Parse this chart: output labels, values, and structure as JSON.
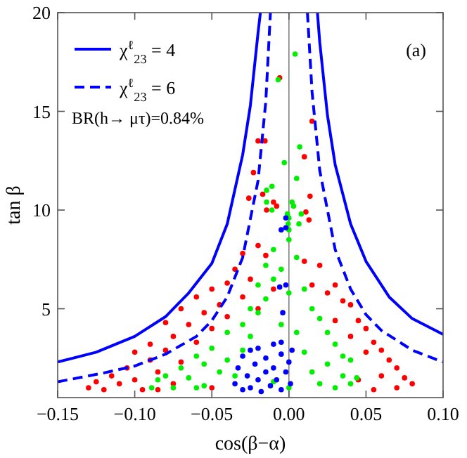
{
  "chart_data": {
    "type": "scatter",
    "xlabel": "cos(β−α)",
    "ylabel": "tan β",
    "xlim": [
      -0.15,
      0.1
    ],
    "xticks": [
      {
        "value": -0.15,
        "label": "−0.15"
      },
      {
        "value": -0.1,
        "label": "−0.10"
      },
      {
        "value": -0.05,
        "label": "−0.05"
      },
      {
        "value": 0,
        "label": "0.00"
      },
      {
        "value": 0.05,
        "label": "0.05"
      },
      {
        "value": 0.1,
        "label": "0.10"
      }
    ],
    "ylim": [
      0.5,
      20
    ],
    "yticks": [
      5,
      10,
      15,
      20
    ],
    "grid": false,
    "legend": "top left",
    "ref_lines": [
      {
        "axis": "x",
        "value": 0,
        "color": "#808080"
      }
    ],
    "annotations": [
      "(a)",
      "BR(h→ μτ)=0.84%"
    ],
    "series": [
      {
        "color": "#ff0000",
        "marker": "circle",
        "x": [
          -0.13,
          -0.125,
          -0.12,
          -0.115,
          -0.11,
          -0.105,
          -0.1,
          -0.1,
          -0.095,
          -0.09,
          -0.09,
          -0.085,
          -0.08,
          -0.08,
          -0.075,
          -0.075,
          -0.07,
          -0.07,
          -0.065,
          -0.06,
          -0.06,
          -0.055,
          -0.05,
          -0.05,
          -0.045,
          -0.04,
          -0.04,
          -0.035,
          -0.03,
          -0.03,
          -0.025,
          -0.02,
          -0.02,
          -0.015,
          -0.01,
          0.01,
          0.015,
          0.02,
          0.025,
          0.03,
          0.03,
          0.035,
          0.04,
          0.04,
          0.045,
          0.05,
          0.05,
          0.055,
          0.06,
          0.06,
          0.065,
          0.07,
          0.07,
          0.075,
          0.08,
          0.055,
          0.045,
          -0.05,
          -0.085,
          -0.006,
          0.015,
          -0.02,
          -0.0155,
          0.01,
          -0.023,
          0.0137,
          -0.026,
          -0.017,
          -0.01,
          -0.008,
          -0.0145,
          0.011,
          0.013
        ],
        "values": [
          1.0,
          1.3,
          0.9,
          1.6,
          1.2,
          2.0,
          2.8,
          1.4,
          0.9,
          2.4,
          3.2,
          1.8,
          4.3,
          2.9,
          3.6,
          1.2,
          5.0,
          2.3,
          4.2,
          5.6,
          3.3,
          4.8,
          6.0,
          4.0,
          5.2,
          6.3,
          4.6,
          7.0,
          5.6,
          7.8,
          6.5,
          8.2,
          5.0,
          7.7,
          6.0,
          7.4,
          6.2,
          7.2,
          5.8,
          6.2,
          4.4,
          5.4,
          5.2,
          3.6,
          4.4,
          4.0,
          2.8,
          3.3,
          2.9,
          1.6,
          2.4,
          2.0,
          1.0,
          1.5,
          1.2,
          0.9,
          1.4,
          1.0,
          0.9,
          16.7,
          14.5,
          13.5,
          13.5,
          12.7,
          11.9,
          10.7,
          10.6,
          10.8,
          10.4,
          10.2,
          10.0,
          9.9,
          9.5
        ]
      },
      {
        "color": "#00ee00",
        "marker": "circle",
        "x": [
          -0.089,
          -0.085,
          -0.08,
          -0.075,
          -0.07,
          -0.065,
          -0.06,
          -0.055,
          -0.055,
          -0.05,
          -0.045,
          -0.04,
          -0.04,
          -0.035,
          -0.03,
          -0.03,
          -0.025,
          -0.025,
          -0.02,
          -0.02,
          -0.015,
          -0.015,
          -0.01,
          -0.01,
          -0.005,
          -0.005,
          0.0,
          0.0,
          0.005,
          0.005,
          0.01,
          0.01,
          0.015,
          0.015,
          0.02,
          0.02,
          0.025,
          0.025,
          0.03,
          0.03,
          0.035,
          0.035,
          0.04,
          0.04,
          0.044,
          0.0,
          -0.01,
          -0.06,
          0.004,
          -0.007,
          0.007,
          -0.003,
          0.005,
          -0.0145,
          -0.011,
          -0.0145,
          -0.011,
          0.002,
          0.003,
          -0.001,
          0.0,
          0.008,
          0.0065,
          -0.0005,
          0.0
        ],
        "values": [
          1.0,
          1.4,
          1.6,
          1.0,
          2.0,
          1.5,
          2.6,
          1.1,
          2.2,
          3.0,
          1.8,
          3.8,
          2.4,
          1.6,
          4.2,
          2.9,
          5.0,
          3.6,
          4.8,
          6.2,
          5.5,
          7.2,
          6.5,
          8.0,
          7.0,
          4.2,
          8.5,
          5.8,
          7.6,
          3.8,
          6.0,
          2.8,
          5.0,
          1.8,
          4.5,
          1.2,
          3.8,
          2.2,
          3.2,
          1.0,
          2.6,
          1.6,
          2.4,
          1.2,
          1.5,
          1.0,
          1.3,
          1.0,
          17.9,
          16.6,
          13.2,
          12.4,
          11.6,
          11.0,
          11.2,
          10.4,
          10.0,
          10.4,
          10.2,
          9.8,
          9.6,
          9.8,
          9.3,
          9.3,
          9.0
        ]
      },
      {
        "color": "#0000ff",
        "marker": "circle",
        "x": [
          -0.035,
          -0.033,
          -0.03,
          -0.03,
          -0.027,
          -0.025,
          -0.025,
          -0.022,
          -0.02,
          -0.02,
          -0.018,
          -0.015,
          -0.015,
          -0.012,
          -0.01,
          -0.01,
          -0.008,
          -0.005,
          -0.005,
          -0.002,
          0.0,
          0.001,
          0.002,
          -0.005,
          -0.004,
          -0.006,
          -0.002,
          -0.002,
          -0.002,
          -0.005
        ],
        "values": [
          1.2,
          2.0,
          0.9,
          2.6,
          1.6,
          2.9,
          1.0,
          2.2,
          1.4,
          3.0,
          0.8,
          2.5,
          1.8,
          1.1,
          3.2,
          2.0,
          1.4,
          2.7,
          0.9,
          1.8,
          2.3,
          1.2,
          2.9,
          3.3,
          4.8,
          6.1,
          6.2,
          9.1,
          9.6,
          9.0
        ]
      },
      {
        "type": "line",
        "name": "χ$^{ℓ}$$_{23}$ = 4",
        "color": "#0000ff",
        "line_style": "solid",
        "marker": "none",
        "x": [
          -0.15,
          -0.125,
          -0.1,
          -0.08,
          -0.065,
          -0.05,
          -0.04,
          -0.03,
          -0.025,
          -0.02,
          -0.0185
        ],
        "values": [
          2.3,
          2.8,
          3.6,
          4.6,
          5.8,
          7.3,
          9.3,
          12.8,
          15.3,
          19,
          20
        ]
      },
      {
        "type": "line",
        "color": "#0000ff",
        "line_style": "solid",
        "marker": "none",
        "x": [
          0.0185,
          0.02,
          0.025,
          0.03,
          0.04,
          0.05,
          0.065,
          0.08,
          0.1
        ],
        "values": [
          20,
          18.5,
          14.8,
          12.3,
          9.3,
          7.4,
          5.6,
          4.5,
          3.7
        ]
      },
      {
        "type": "line",
        "name": "χ$^{ℓ}$$_{23}$ = 6",
        "color": "#0000ff",
        "line_style": "dashed",
        "marker": "none",
        "x": [
          -0.15,
          -0.12,
          -0.1,
          -0.08,
          -0.06,
          -0.05,
          -0.04,
          -0.03,
          -0.02,
          -0.015,
          -0.012
        ],
        "values": [
          1.3,
          1.75,
          2.1,
          2.7,
          3.6,
          4.4,
          5.6,
          7.6,
          11.5,
          15.5,
          20
        ]
      },
      {
        "type": "line",
        "color": "#0000ff",
        "line_style": "dashed",
        "marker": "none",
        "x": [
          0.012,
          0.015,
          0.02,
          0.03,
          0.04,
          0.05,
          0.06,
          0.08,
          0.1
        ],
        "values": [
          20,
          16,
          12,
          8,
          6,
          4.7,
          3.9,
          2.9,
          2.3
        ]
      }
    ]
  }
}
